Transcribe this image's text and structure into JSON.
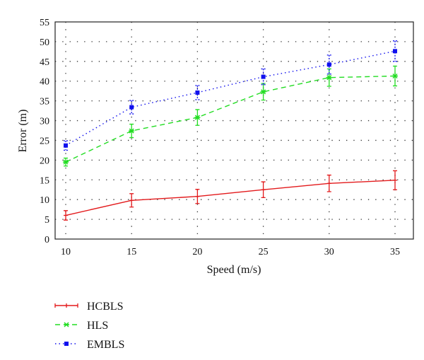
{
  "chart_data": {
    "type": "line",
    "title": "",
    "xlabel": "Speed (m/s)",
    "ylabel": "Error (m)",
    "x": [
      10,
      15,
      20,
      25,
      30,
      35
    ],
    "xticks": [
      10,
      15,
      20,
      25,
      30,
      35
    ],
    "yticks": [
      0,
      5,
      10,
      15,
      20,
      25,
      30,
      35,
      40,
      45,
      50,
      55
    ],
    "xlim": [
      9,
      36
    ],
    "ylim": [
      0,
      55
    ],
    "grid": true,
    "legend_position": "below-left",
    "series": [
      {
        "name": "HCBLS",
        "color": "#e31a1c",
        "style": "solid",
        "marker": "+",
        "values": [
          6.0,
          9.8,
          10.8,
          12.5,
          14.1,
          14.9
        ],
        "errors": [
          1.2,
          1.7,
          1.8,
          2.0,
          2.1,
          2.4
        ]
      },
      {
        "name": "HLS",
        "color": "#22dd22",
        "style": "dashed",
        "marker": "x",
        "values": [
          19.5,
          27.4,
          30.8,
          37.3,
          40.9,
          41.3
        ],
        "errors": [
          1.0,
          1.7,
          2.0,
          2.1,
          2.2,
          2.5
        ]
      },
      {
        "name": "EMBLS",
        "color": "#1010ee",
        "style": "dotted",
        "marker": "square",
        "values": [
          23.7,
          33.4,
          37.1,
          41.1,
          44.2,
          47.6
        ],
        "errors": [
          1.2,
          1.7,
          1.8,
          2.0,
          2.4,
          2.6
        ]
      }
    ]
  }
}
